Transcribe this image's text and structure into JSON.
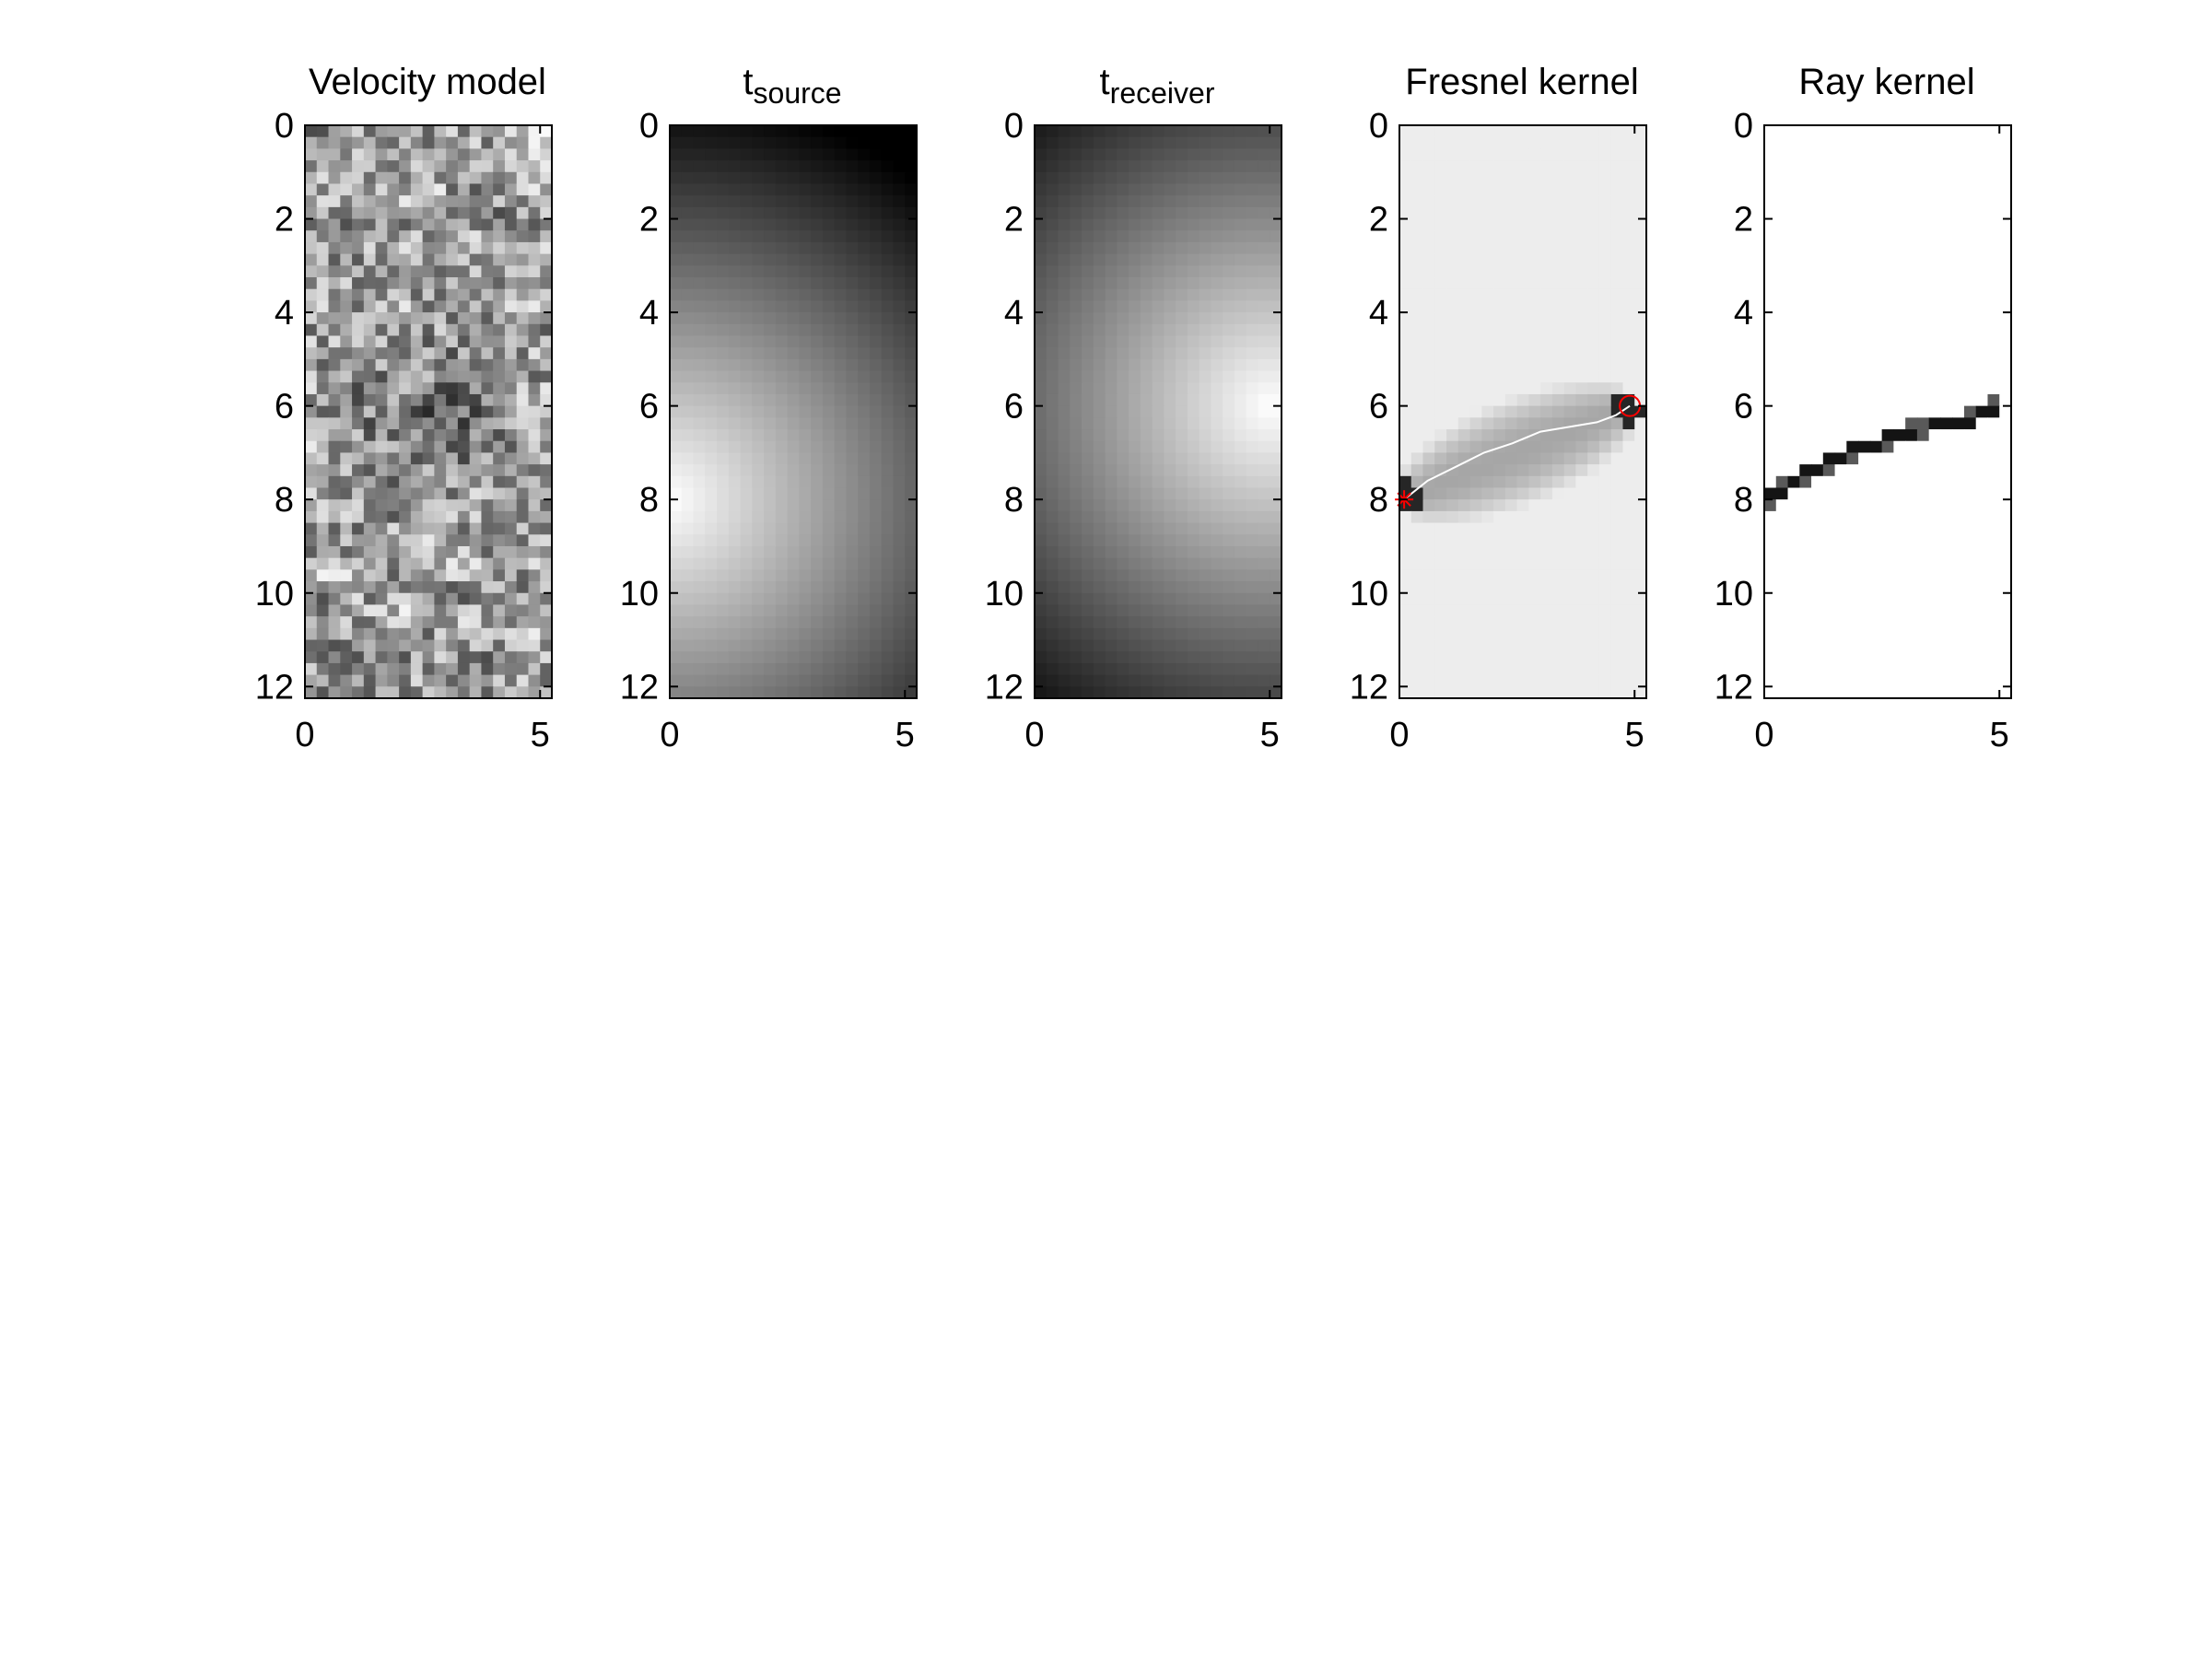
{
  "figure": {
    "background": "#ffffff"
  },
  "chart_data": [
    {
      "type": "heatmap",
      "title": "Velocity model",
      "xlim": [
        0,
        5.25
      ],
      "ylim": [
        0,
        12.25
      ],
      "y_reversed": true,
      "colormap": "gray",
      "xticks": [
        0,
        5
      ],
      "yticks": [
        0,
        2,
        4,
        6,
        8,
        10,
        12
      ],
      "grid": false,
      "field": "random_texture"
    },
    {
      "type": "heatmap",
      "title": "t",
      "title_subscript": "source",
      "xlim": [
        0,
        5.25
      ],
      "ylim": [
        0,
        12.25
      ],
      "y_reversed": true,
      "colormap": "gray",
      "xticks": [
        0,
        5
      ],
      "yticks": [
        0,
        2,
        4,
        6,
        8,
        10,
        12
      ],
      "grid": false,
      "field": "traveltime_distance",
      "point": [
        0,
        8
      ]
    },
    {
      "type": "heatmap",
      "title": "t",
      "title_subscript": "receiver",
      "xlim": [
        0,
        5.25
      ],
      "ylim": [
        0,
        12.25
      ],
      "y_reversed": true,
      "colormap": "gray",
      "xticks": [
        0,
        5
      ],
      "yticks": [
        0,
        2,
        4,
        6,
        8,
        10,
        12
      ],
      "grid": false,
      "field": "traveltime_distance",
      "point": [
        5,
        6
      ]
    },
    {
      "type": "heatmap",
      "title": "Fresnel kernel",
      "xlim": [
        0,
        5.25
      ],
      "ylim": [
        0,
        12.25
      ],
      "y_reversed": true,
      "colormap": "gray",
      "xticks": [
        0,
        5
      ],
      "yticks": [
        0,
        2,
        4,
        6,
        8,
        10,
        12
      ],
      "grid": false,
      "field": "fresnel_zone",
      "source": [
        0.1,
        8.0
      ],
      "receiver": [
        4.9,
        6.0
      ],
      "source_marker": "*",
      "receiver_marker": "o",
      "marker_color": "#ff0000",
      "ray_color": "#ffffff",
      "ray_path": [
        [
          0.1,
          8.0
        ],
        [
          0.6,
          7.6
        ],
        [
          1.2,
          7.3
        ],
        [
          1.8,
          7.0
        ],
        [
          2.4,
          6.8
        ],
        [
          3.0,
          6.55
        ],
        [
          3.6,
          6.45
        ],
        [
          4.2,
          6.35
        ],
        [
          4.6,
          6.2
        ],
        [
          4.9,
          6.0
        ]
      ]
    },
    {
      "type": "heatmap",
      "title": "Ray kernel",
      "xlim": [
        0,
        5.25
      ],
      "ylim": [
        0,
        12.25
      ],
      "y_reversed": true,
      "colormap": "gray",
      "xticks": [
        0,
        5
      ],
      "yticks": [
        0,
        2,
        4,
        6,
        8,
        10,
        12
      ],
      "grid": false,
      "field": "ray_cells",
      "ray_path": [
        [
          0.1,
          8.0
        ],
        [
          0.6,
          7.6
        ],
        [
          1.2,
          7.3
        ],
        [
          1.8,
          7.0
        ],
        [
          2.4,
          6.8
        ],
        [
          3.0,
          6.55
        ],
        [
          3.6,
          6.45
        ],
        [
          4.2,
          6.35
        ],
        [
          4.6,
          6.2
        ],
        [
          4.9,
          6.0
        ]
      ]
    }
  ]
}
